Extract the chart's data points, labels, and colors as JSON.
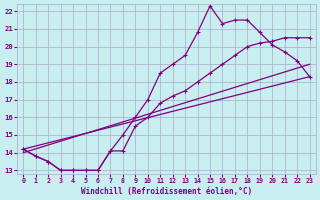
{
  "bg_color": "#c8eef0",
  "line_color": "#800080",
  "grid_color": "#aaaacc",
  "xlabel": "Windchill (Refroidissement éolien,°C)",
  "xlabel_color": "#800080",
  "tick_color": "#800080",
  "xlim": [
    -0.5,
    23.5
  ],
  "ylim": [
    12.8,
    22.4
  ],
  "yticks": [
    13,
    14,
    15,
    16,
    17,
    18,
    19,
    20,
    21,
    22
  ],
  "xticks": [
    0,
    1,
    2,
    3,
    4,
    5,
    6,
    7,
    8,
    9,
    10,
    11,
    12,
    13,
    14,
    15,
    16,
    17,
    18,
    19,
    20,
    21,
    22,
    23
  ],
  "curve1_x": [
    0,
    1,
    2,
    3,
    4,
    5,
    6,
    7,
    8,
    9,
    10,
    11,
    12,
    13,
    14,
    15,
    16,
    17,
    18,
    19,
    20,
    21,
    22,
    23
  ],
  "curve1_y": [
    14.2,
    13.8,
    13.5,
    13.0,
    13.0,
    13.0,
    13.0,
    14.1,
    15.0,
    16.0,
    17.0,
    18.5,
    19.0,
    19.5,
    20.8,
    22.3,
    21.3,
    21.5,
    21.5,
    20.8,
    20.1,
    19.7,
    19.2,
    18.3
  ],
  "curve2_x": [
    0,
    1,
    2,
    3,
    4,
    5,
    6,
    7,
    8,
    9,
    10,
    11,
    12,
    13,
    14,
    15,
    16,
    17,
    18,
    19,
    20,
    21,
    22,
    23
  ],
  "curve2_y": [
    14.2,
    13.8,
    13.5,
    13.0,
    13.0,
    13.0,
    13.0,
    14.1,
    14.1,
    15.5,
    16.0,
    16.8,
    17.2,
    17.5,
    18.0,
    18.5,
    19.0,
    19.5,
    20.0,
    20.2,
    20.3,
    20.5,
    20.5,
    20.5
  ],
  "line3_x": [
    0,
    23
  ],
  "line3_y": [
    14.2,
    18.3
  ],
  "line4_x": [
    0,
    23
  ],
  "line4_y": [
    14.0,
    19.0
  ]
}
